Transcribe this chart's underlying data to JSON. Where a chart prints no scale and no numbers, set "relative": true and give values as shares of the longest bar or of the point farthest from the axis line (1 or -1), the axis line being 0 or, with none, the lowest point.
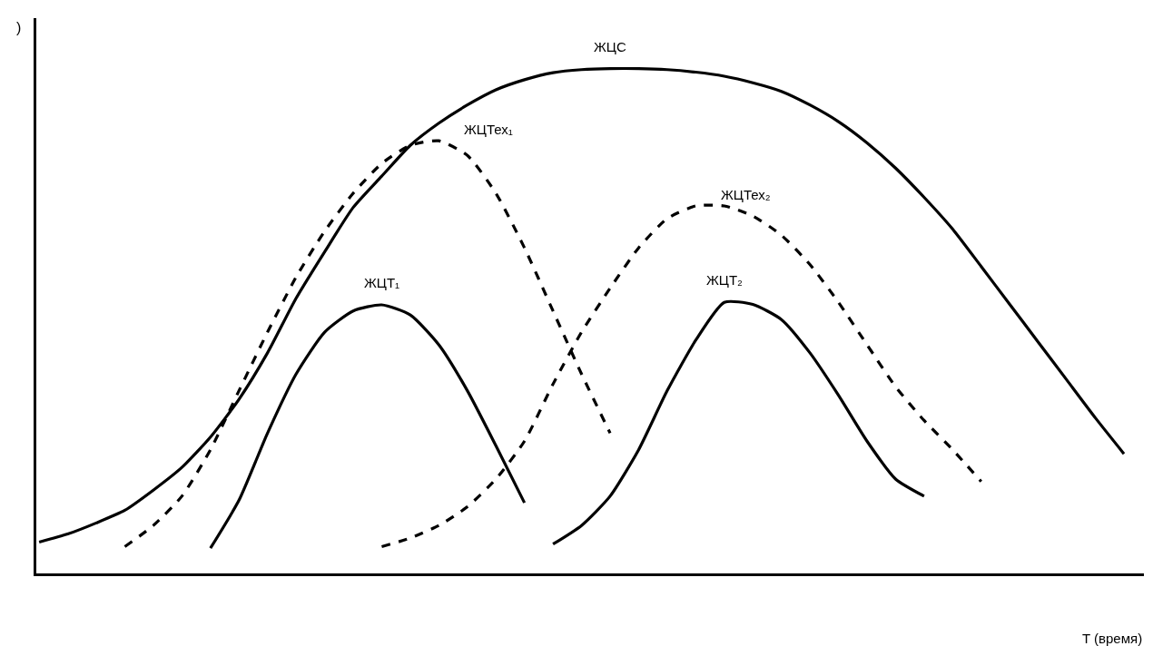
{
  "chart_data": {
    "type": "line",
    "relative": true,
    "ylabel": ")",
    "xlabel": "T (время)",
    "legend": false,
    "marker": "none",
    "categories": [
      null,
      null,
      null,
      null,
      null,
      null,
      null,
      null,
      null,
      null,
      null,
      null,
      null,
      null,
      null,
      null,
      null,
      null,
      null,
      null,
      null,
      null,
      null,
      null,
      null,
      null,
      null,
      null,
      null,
      null,
      null,
      null,
      null,
      null,
      null,
      null,
      null,
      null,
      null
    ],
    "series": [
      {
        "name": "ЖЦС",
        "color": "#000000",
        "line_style": "solid",
        "values": [
          0.062,
          0.078,
          0.1,
          0.125,
          0.165,
          0.21,
          0.27,
          0.345,
          0.437,
          0.545,
          0.637,
          0.725,
          0.787,
          0.848,
          0.892,
          0.928,
          0.958,
          0.978,
          0.992,
          0.998,
          1.0,
          1.0,
          0.998,
          0.993,
          0.985,
          0.972,
          0.955,
          0.928,
          0.895,
          0.853,
          0.803,
          0.745,
          0.682,
          0.608,
          0.533,
          0.458,
          0.383,
          0.308,
          0.237
        ]
      },
      {
        "name": "ЖЦТех₁",
        "color": "#000000",
        "line_style": "dashed",
        "values": [
          null,
          null,
          null,
          0.053,
          0.095,
          0.153,
          0.245,
          0.362,
          0.478,
          0.587,
          0.678,
          0.753,
          0.812,
          0.848,
          0.857,
          0.828,
          0.753,
          0.645,
          0.52,
          0.395,
          0.278,
          null,
          null,
          null,
          null,
          null,
          null,
          null,
          null,
          null,
          null,
          null,
          null,
          null,
          null,
          null,
          null,
          null,
          null
        ]
      },
      {
        "name": "ЖЦТех₂",
        "color": "#000000",
        "line_style": "dashed",
        "values": [
          null,
          null,
          null,
          null,
          null,
          null,
          null,
          null,
          null,
          null,
          null,
          null,
          0.053,
          0.07,
          0.095,
          0.132,
          0.187,
          0.262,
          0.375,
          0.478,
          0.565,
          0.645,
          0.703,
          0.728,
          0.728,
          0.708,
          0.67,
          0.612,
          0.537,
          0.453,
          0.37,
          0.303,
          0.245,
          0.182,
          null,
          null,
          null,
          null,
          null
        ]
      },
      {
        "name": "ЖЦТ₁",
        "color": "#000000",
        "line_style": "solid",
        "values": [
          null,
          null,
          null,
          null,
          null,
          null,
          0.05,
          0.145,
          0.278,
          0.395,
          0.478,
          0.52,
          0.532,
          0.512,
          0.453,
          0.362,
          0.253,
          0.14,
          null,
          null,
          null,
          null,
          null,
          null,
          null,
          null,
          null,
          null,
          null,
          null,
          null,
          null,
          null,
          null,
          null,
          null,
          null,
          null,
          null
        ]
      },
      {
        "name": "ЖЦТ₂",
        "color": "#000000",
        "line_style": "solid",
        "values": [
          null,
          null,
          null,
          null,
          null,
          null,
          null,
          null,
          null,
          null,
          null,
          null,
          null,
          null,
          null,
          null,
          null,
          null,
          0.058,
          0.095,
          0.153,
          0.245,
          0.362,
          0.462,
          0.537,
          0.533,
          0.503,
          0.437,
          0.353,
          0.262,
          0.187,
          0.153,
          null,
          null,
          null,
          null,
          null,
          null,
          null
        ]
      }
    ]
  }
}
